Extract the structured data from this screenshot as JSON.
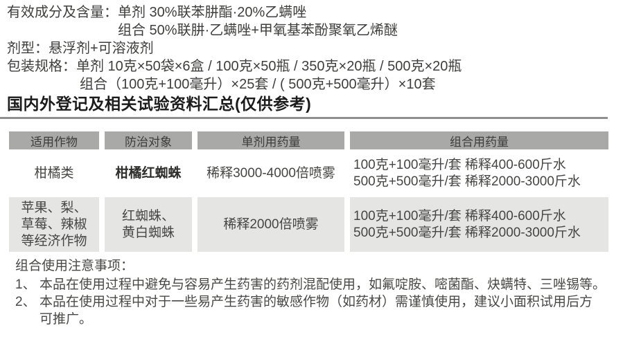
{
  "colors": {
    "table_header_bg": "#a9a9a7",
    "table_alt_row_bg": "#e5e5e3",
    "heading_text": "#1b1b1b",
    "body_text": "#3e3e3c",
    "rule": "#8f8f8f"
  },
  "top_info": {
    "lines": [
      "有效成分及含量：单剂 30%联苯肼酯·20%乙螨唑",
      "组合 50%联肼·乙螨唑+甲氧基苯酚聚氧乙烯醚",
      "剂型：悬浮剂+可溶液剂",
      "包装规格：单剂 10克×50袋×6盒 / 100克×50瓶 / 350克×20瓶 / 500克×20瓶",
      "组合（100克+100毫升）×25套 / ( 500克+500毫升）×10套"
    ]
  },
  "section_title": "国内外登记及相关试验资料汇总(仅供参考)",
  "table": {
    "headers": [
      "适用作物",
      "防治对象",
      "单剂用药量",
      "组合用药量"
    ],
    "rows": [
      {
        "cells": [
          "柑橘类",
          "柑橘红蜘蛛",
          "稀释3000-4000倍喷雾",
          "100克+100毫升/套 稀释400-600斤水\n500克+500毫升/套 稀释2000-3000斤水"
        ]
      },
      {
        "cells": [
          "苹果、梨、\n草莓、辣椒\n等经济作物",
          "红蜘蛛、\n黄白蜘蛛",
          "稀释2000倍喷雾",
          "100克+100毫升/套 稀释400-600斤水\n500克+500毫升/套 稀释2000-3000斤水"
        ]
      }
    ]
  },
  "notes": {
    "title": "组合使用注意事项：",
    "items": [
      {
        "num": "1、",
        "text": "本品在使用过程中避免与容易产生药害的药剂混配使用，如氟啶胺、嘧菌酯、炔螨特、三唑锡等。"
      },
      {
        "num": "2、",
        "text": "本品在使用过程中对于一些易产生药害的敏感作物（如药材）需谨慎使用，建议小面积试用后方\n可推广。"
      }
    ]
  }
}
